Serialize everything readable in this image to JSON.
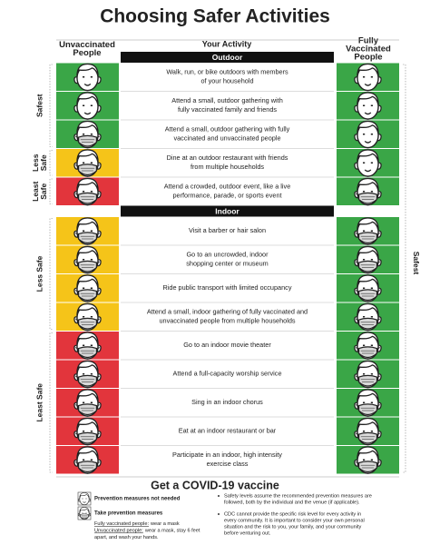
{
  "title": "Choosing Safer Activities",
  "columns": {
    "unvaccinated": [
      "Unvaccinated",
      "People"
    ],
    "activity": "Your Activity",
    "vaccinated": [
      "Fully",
      "Vaccinated",
      "People"
    ]
  },
  "level_colors": {
    "safest": "#3aa647",
    "less_safe": "#f5c419",
    "least_safe": "#e2353c"
  },
  "vaccinated_label": "Safest",
  "sections": [
    {
      "name": "Outdoor",
      "side_labels": [
        [
          "Safest"
        ],
        [
          "Less",
          "Safe"
        ],
        [
          "Least",
          "Safe"
        ]
      ],
      "rows": [
        {
          "activity": [
            "Walk, run, or bike outdoors with members",
            "of your household"
          ],
          "unvaccinated": {
            "level": "safest",
            "mask": false
          },
          "vaccinated": {
            "level": "safest",
            "mask": false
          }
        },
        {
          "activity": [
            "Attend a small, outdoor gathering with",
            "fully vaccinated family and friends"
          ],
          "unvaccinated": {
            "level": "safest",
            "mask": false
          },
          "vaccinated": {
            "level": "safest",
            "mask": false
          }
        },
        {
          "activity": [
            "Attend a small, outdoor gathering with fully",
            "vaccinated and unvaccinated people"
          ],
          "unvaccinated": {
            "level": "safest",
            "mask": true
          },
          "vaccinated": {
            "level": "safest",
            "mask": false
          }
        },
        {
          "activity": [
            "Dine at an outdoor restaurant with friends",
            "from multiple households"
          ],
          "unvaccinated": {
            "level": "less_safe",
            "mask": true
          },
          "vaccinated": {
            "level": "safest",
            "mask": false
          }
        },
        {
          "activity": [
            "Attend a crowded, outdoor event, like a live",
            "performance, parade, or sports event"
          ],
          "unvaccinated": {
            "level": "least_safe",
            "mask": true
          },
          "vaccinated": {
            "level": "safest",
            "mask": true
          }
        }
      ]
    },
    {
      "name": "Indoor",
      "side_labels": [
        [
          "Less Safe"
        ],
        [
          "Least Safe"
        ]
      ],
      "rows": [
        {
          "activity": [
            "Visit a barber or hair salon"
          ],
          "unvaccinated": {
            "level": "less_safe",
            "mask": true
          },
          "vaccinated": {
            "level": "safest",
            "mask": true
          }
        },
        {
          "activity": [
            "Go to an uncrowded, indoor",
            "shopping center or museum"
          ],
          "unvaccinated": {
            "level": "less_safe",
            "mask": true
          },
          "vaccinated": {
            "level": "safest",
            "mask": true
          }
        },
        {
          "activity": [
            "Ride public transport with limited occupancy"
          ],
          "unvaccinated": {
            "level": "less_safe",
            "mask": true
          },
          "vaccinated": {
            "level": "safest",
            "mask": true
          }
        },
        {
          "activity": [
            "Attend a small, indoor gathering of fully vaccinated and",
            "unvaccinated people from multiple households"
          ],
          "unvaccinated": {
            "level": "less_safe",
            "mask": true
          },
          "vaccinated": {
            "level": "safest",
            "mask": true
          }
        },
        {
          "activity": [
            "Go to an indoor movie theater"
          ],
          "unvaccinated": {
            "level": "least_safe",
            "mask": true
          },
          "vaccinated": {
            "level": "safest",
            "mask": true
          }
        },
        {
          "activity": [
            "Attend a full-capacity worship service"
          ],
          "unvaccinated": {
            "level": "least_safe",
            "mask": true
          },
          "vaccinated": {
            "level": "safest",
            "mask": true
          }
        },
        {
          "activity": [
            "Sing in an indoor chorus"
          ],
          "unvaccinated": {
            "level": "least_safe",
            "mask": true
          },
          "vaccinated": {
            "level": "safest",
            "mask": true
          }
        },
        {
          "activity": [
            "Eat at an indoor restaurant or bar"
          ],
          "unvaccinated": {
            "level": "least_safe",
            "mask": true
          },
          "vaccinated": {
            "level": "safest",
            "mask": true
          }
        },
        {
          "activity": [
            "Participate in an indoor, high intensity",
            "exercise class"
          ],
          "unvaccinated": {
            "level": "least_safe",
            "mask": true
          },
          "vaccinated": {
            "level": "safest",
            "mask": true
          }
        }
      ]
    }
  ],
  "footer": {
    "heading": "Get a COVID-19 vaccine",
    "legend": [
      {
        "label": "Prevention measures not needed",
        "mask": false
      },
      {
        "label": "Take prevention measures",
        "mask": true
      }
    ],
    "notes": [
      {
        "term": "Fully vaccinated people:",
        "lines": [
          "wear a mask"
        ]
      },
      {
        "term": "Unvaccinated people:",
        "lines": [
          "wear a mask, stay 6 feet",
          "apart, and wash your hands."
        ]
      }
    ],
    "bullets": [
      [
        "Safety levels assume the recommended prevention measures are",
        "followed, both by the individual and the venue (if applicable)."
      ],
      [
        "CDC cannot provide the specific risk level for every activity in",
        "every community. It is important to consider your own personal",
        "situation and the risk to you, your family, and your community",
        "before venturing out."
      ]
    ]
  }
}
